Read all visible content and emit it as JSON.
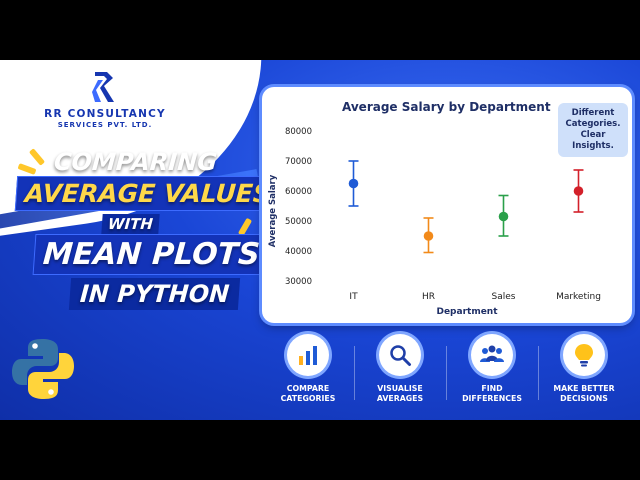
{
  "brand": {
    "name": "RR CONSULTANCY",
    "sub": "SERVICES PVT. LTD."
  },
  "headline": {
    "line1": "COMPARING",
    "line2": "AVERAGE VALUES",
    "line3": "WITH",
    "line4": "MEAN PLOTS",
    "line5": "IN PYTHON"
  },
  "callout": {
    "line1": "Different",
    "line2": "Categories.",
    "line3": "Clear Insights."
  },
  "chart_data": {
    "type": "scatter",
    "title": "Average Salary by Department",
    "xlabel": "Department",
    "ylabel": "Average Salary",
    "categories": [
      "IT",
      "HR",
      "Sales",
      "Marketing"
    ],
    "values": [
      62500,
      45000,
      51500,
      60000
    ],
    "lower": [
      55000,
      39500,
      45000,
      53000
    ],
    "upper": [
      70000,
      51000,
      58500,
      67000
    ],
    "colors": [
      "#1f5bd6",
      "#f28a1a",
      "#2aa04a",
      "#d3202a"
    ],
    "ylim": [
      30000,
      80000
    ],
    "yticks": [
      "80000",
      "70000",
      "60000",
      "50000",
      "40000",
      "30000"
    ],
    "legend": "none",
    "grid": false
  },
  "features": [
    {
      "icon": "bar-chart-icon",
      "line1": "COMPARE",
      "line2": "CATEGORIES"
    },
    {
      "icon": "magnifier-icon",
      "line1": "VISUALISE",
      "line2": "AVERAGES"
    },
    {
      "icon": "people-icon",
      "line1": "FIND",
      "line2": "DIFFERENCES"
    },
    {
      "icon": "lightbulb-icon",
      "line1": "MAKE BETTER",
      "line2": "DECISIONS"
    }
  ],
  "colors": {
    "primary_blue": "#1a46d6",
    "accent_yellow": "#ffd84a",
    "python_blue": "#3572a5",
    "python_yellow": "#ffd43b"
  }
}
